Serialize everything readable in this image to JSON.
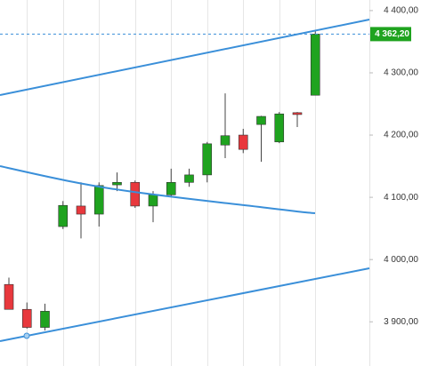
{
  "chart_data": {
    "type": "candlestick",
    "categories": [
      null,
      null,
      null,
      null,
      null,
      null,
      null,
      null,
      null,
      null,
      null,
      null,
      null,
      null,
      null,
      null,
      null,
      null
    ],
    "open": [
      3960,
      3920,
      3891,
      4053,
      4086,
      4073,
      4120,
      4124,
      4086,
      4104,
      4124,
      4136,
      4184,
      4200,
      4217,
      4189,
      4236,
      4264
    ],
    "high": [
      3971,
      3931,
      3929,
      4094,
      4124,
      4124,
      4140,
      4127,
      4110,
      4146,
      4146,
      4189,
      4267,
      4210,
      4231,
      4237,
      4237,
      4367
    ],
    "low": [
      3920,
      3889,
      3886,
      4049,
      4034,
      4053,
      4110,
      4083,
      4060,
      4100,
      4117,
      4124,
      4163,
      4171,
      4157,
      4187,
      4213,
      4264
    ],
    "close": [
      3920,
      3891,
      3917,
      4087,
      4073,
      4119,
      4124,
      4086,
      4104,
      4124,
      4136,
      4186,
      4199,
      4177,
      4230,
      4234,
      4233,
      4362.2
    ],
    "up_color": "#1fa31f",
    "down_color": "#e8383d",
    "ylim": [
      3829,
      4417
    ],
    "yticks": [
      {
        "value": 3900,
        "label": "3 900,00"
      },
      {
        "value": 4000,
        "label": "4 000,00"
      },
      {
        "value": 4100,
        "label": "4 100,00"
      },
      {
        "value": 4200,
        "label": "4 200,00"
      },
      {
        "value": 4300,
        "label": "4 300,00"
      },
      {
        "value": 4400,
        "label": "4 400,00"
      }
    ],
    "last_price": {
      "value": 4362.2,
      "label": "4 362,20"
    },
    "grid": true
  }
}
